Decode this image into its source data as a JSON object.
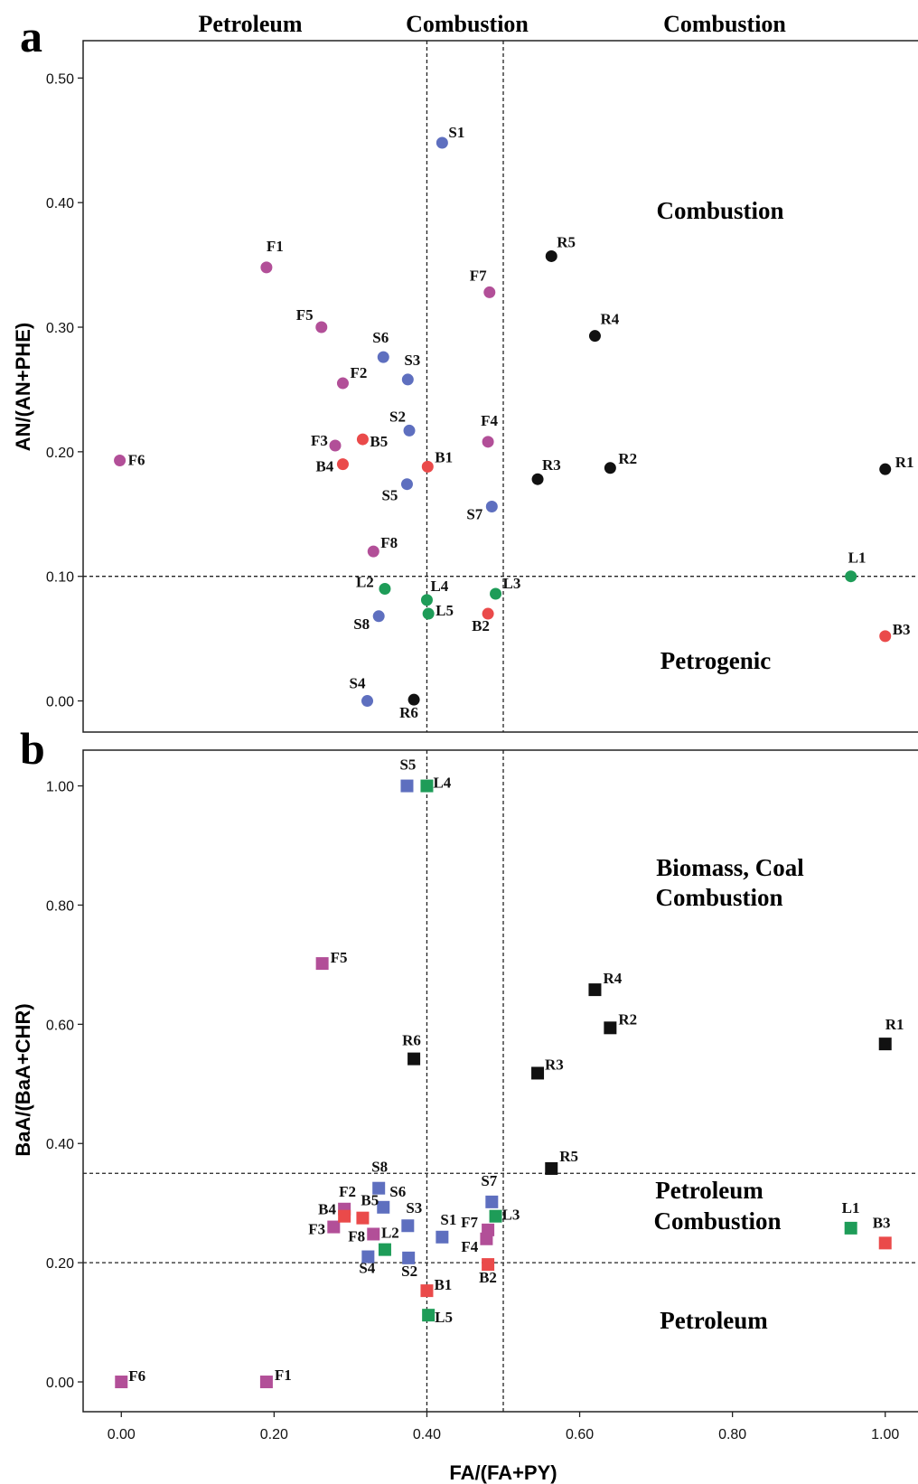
{
  "colors": {
    "purple": "#b24f98",
    "blue": "#5e6fbf",
    "red": "#ea4a4a",
    "black": "#111111",
    "green": "#1e9c58"
  },
  "shared": {
    "xlabel": "FA/(FA+PY)",
    "xlim": [
      -0.05,
      1.05
    ],
    "xticks": [
      0.0,
      0.2,
      0.4,
      0.6,
      0.8,
      1.0
    ],
    "xtick_labels": [
      "0.00",
      "0.20",
      "0.40",
      "0.60",
      "0.80",
      "1.00"
    ],
    "vlines": [
      0.4,
      0.5
    ],
    "top_headers": [
      "Petroleum",
      "Combustion",
      "Combustion"
    ]
  },
  "chart_data": [
    {
      "panel_letter": "a",
      "type": "scatter",
      "marker": "circle",
      "ylabel": "AN/(AN+PHE)",
      "ylim": [
        -0.025,
        0.53
      ],
      "yticks": [
        0.0,
        0.1,
        0.2,
        0.3,
        0.4,
        0.5
      ],
      "ytick_labels": [
        "0.00",
        "0.10",
        "0.20",
        "0.30",
        "0.40",
        "0.50"
      ],
      "hlines": [
        0.1
      ],
      "region_labels": [
        "Combustion",
        "Petrogenic"
      ],
      "points": [
        {
          "label": "F1",
          "x": 0.19,
          "y": 0.348,
          "color": "purple"
        },
        {
          "label": "F2",
          "x": 0.29,
          "y": 0.255,
          "color": "purple"
        },
        {
          "label": "F3",
          "x": 0.28,
          "y": 0.205,
          "color": "purple"
        },
        {
          "label": "F4",
          "x": 0.48,
          "y": 0.208,
          "color": "purple"
        },
        {
          "label": "F5",
          "x": 0.262,
          "y": 0.3,
          "color": "purple"
        },
        {
          "label": "F6",
          "x": -0.002,
          "y": 0.193,
          "color": "purple"
        },
        {
          "label": "F7",
          "x": 0.482,
          "y": 0.328,
          "color": "purple"
        },
        {
          "label": "F8",
          "x": 0.33,
          "y": 0.12,
          "color": "purple"
        },
        {
          "label": "S1",
          "x": 0.42,
          "y": 0.448,
          "color": "blue"
        },
        {
          "label": "S2",
          "x": 0.377,
          "y": 0.217,
          "color": "blue"
        },
        {
          "label": "S3",
          "x": 0.375,
          "y": 0.258,
          "color": "blue"
        },
        {
          "label": "S4",
          "x": 0.322,
          "y": 0.0,
          "color": "blue"
        },
        {
          "label": "S5",
          "x": 0.374,
          "y": 0.174,
          "color": "blue"
        },
        {
          "label": "S6",
          "x": 0.343,
          "y": 0.276,
          "color": "blue"
        },
        {
          "label": "S7",
          "x": 0.485,
          "y": 0.156,
          "color": "blue"
        },
        {
          "label": "S8",
          "x": 0.337,
          "y": 0.068,
          "color": "blue"
        },
        {
          "label": "B1",
          "x": 0.401,
          "y": 0.188,
          "color": "red"
        },
        {
          "label": "B2",
          "x": 0.48,
          "y": 0.07,
          "color": "red"
        },
        {
          "label": "B3",
          "x": 1.0,
          "y": 0.052,
          "color": "red"
        },
        {
          "label": "B4",
          "x": 0.29,
          "y": 0.19,
          "color": "red"
        },
        {
          "label": "B5",
          "x": 0.316,
          "y": 0.21,
          "color": "red"
        },
        {
          "label": "R1",
          "x": 1.0,
          "y": 0.186,
          "color": "black"
        },
        {
          "label": "R2",
          "x": 0.64,
          "y": 0.187,
          "color": "black"
        },
        {
          "label": "R3",
          "x": 0.545,
          "y": 0.178,
          "color": "black"
        },
        {
          "label": "R4",
          "x": 0.62,
          "y": 0.293,
          "color": "black"
        },
        {
          "label": "R5",
          "x": 0.563,
          "y": 0.357,
          "color": "black"
        },
        {
          "label": "R6",
          "x": 0.383,
          "y": 0.001,
          "color": "black"
        },
        {
          "label": "L1",
          "x": 0.955,
          "y": 0.1,
          "color": "green"
        },
        {
          "label": "L2",
          "x": 0.345,
          "y": 0.09,
          "color": "green"
        },
        {
          "label": "L3",
          "x": 0.49,
          "y": 0.086,
          "color": "green"
        },
        {
          "label": "L4",
          "x": 0.4,
          "y": 0.081,
          "color": "green"
        },
        {
          "label": "L5",
          "x": 0.402,
          "y": 0.07,
          "color": "green"
        }
      ]
    },
    {
      "panel_letter": "b",
      "type": "scatter",
      "marker": "square",
      "ylabel": "BaA/(BaA+CHR)",
      "ylim": [
        -0.05,
        1.06
      ],
      "yticks": [
        0.0,
        0.2,
        0.4,
        0.6,
        0.8,
        1.0
      ],
      "ytick_labels": [
        "0.00",
        "0.20",
        "0.40",
        "0.60",
        "0.80",
        "1.00"
      ],
      "hlines": [
        0.2,
        0.35
      ],
      "region_labels": [
        "Biomass, Coal",
        "Combustion",
        "Petroleum",
        "Combustion",
        "Petroleum"
      ],
      "points": [
        {
          "label": "F1",
          "x": 0.19,
          "y": 0.0,
          "color": "purple"
        },
        {
          "label": "F2",
          "x": 0.292,
          "y": 0.29,
          "color": "purple"
        },
        {
          "label": "F3",
          "x": 0.278,
          "y": 0.26,
          "color": "purple"
        },
        {
          "label": "F4",
          "x": 0.478,
          "y": 0.24,
          "color": "purple"
        },
        {
          "label": "F5",
          "x": 0.263,
          "y": 0.702,
          "color": "purple"
        },
        {
          "label": "F6",
          "x": 0.0,
          "y": 0.0,
          "color": "purple"
        },
        {
          "label": "F7",
          "x": 0.48,
          "y": 0.255,
          "color": "purple"
        },
        {
          "label": "F8",
          "x": 0.33,
          "y": 0.248,
          "color": "purple"
        },
        {
          "label": "S1",
          "x": 0.42,
          "y": 0.243,
          "color": "blue"
        },
        {
          "label": "S2",
          "x": 0.376,
          "y": 0.208,
          "color": "blue"
        },
        {
          "label": "S3",
          "x": 0.375,
          "y": 0.262,
          "color": "blue"
        },
        {
          "label": "S4",
          "x": 0.323,
          "y": 0.21,
          "color": "blue"
        },
        {
          "label": "S5",
          "x": 0.374,
          "y": 1.0,
          "color": "blue"
        },
        {
          "label": "S6",
          "x": 0.343,
          "y": 0.293,
          "color": "blue"
        },
        {
          "label": "S7",
          "x": 0.485,
          "y": 0.302,
          "color": "blue"
        },
        {
          "label": "S8",
          "x": 0.337,
          "y": 0.325,
          "color": "blue"
        },
        {
          "label": "B1",
          "x": 0.4,
          "y": 0.153,
          "color": "red"
        },
        {
          "label": "B2",
          "x": 0.48,
          "y": 0.197,
          "color": "red"
        },
        {
          "label": "B3",
          "x": 1.0,
          "y": 0.233,
          "color": "red"
        },
        {
          "label": "B4",
          "x": 0.292,
          "y": 0.278,
          "color": "red"
        },
        {
          "label": "B5",
          "x": 0.316,
          "y": 0.275,
          "color": "red"
        },
        {
          "label": "R1",
          "x": 1.0,
          "y": 0.567,
          "color": "black"
        },
        {
          "label": "R2",
          "x": 0.64,
          "y": 0.594,
          "color": "black"
        },
        {
          "label": "R3",
          "x": 0.545,
          "y": 0.518,
          "color": "black"
        },
        {
          "label": "R4",
          "x": 0.62,
          "y": 0.658,
          "color": "black"
        },
        {
          "label": "R5",
          "x": 0.563,
          "y": 0.358,
          "color": "black"
        },
        {
          "label": "R6",
          "x": 0.383,
          "y": 0.542,
          "color": "black"
        },
        {
          "label": "L1",
          "x": 0.955,
          "y": 0.258,
          "color": "green"
        },
        {
          "label": "L2",
          "x": 0.345,
          "y": 0.222,
          "color": "green"
        },
        {
          "label": "L3",
          "x": 0.49,
          "y": 0.278,
          "color": "green"
        },
        {
          "label": "L4",
          "x": 0.4,
          "y": 1.0,
          "color": "green"
        },
        {
          "label": "L5",
          "x": 0.402,
          "y": 0.112,
          "color": "green"
        }
      ]
    }
  ]
}
